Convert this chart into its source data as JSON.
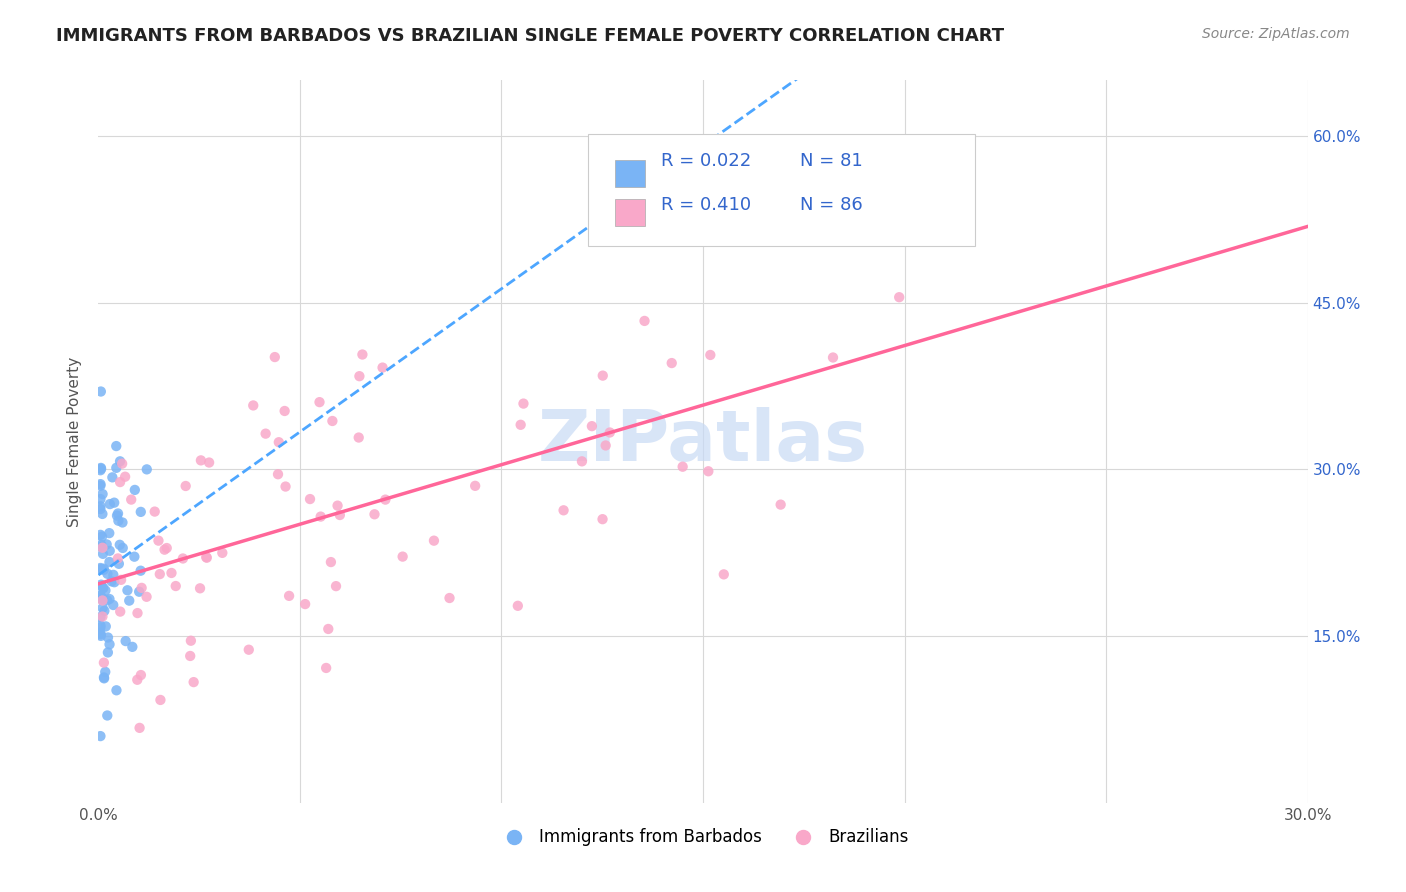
{
  "title": "IMMIGRANTS FROM BARBADOS VS BRAZILIAN SINGLE FEMALE POVERTY CORRELATION CHART",
  "source": "Source: ZipAtlas.com",
  "ylabel": "Single Female Poverty",
  "xlim": [
    0.0,
    0.3
  ],
  "ylim": [
    0.0,
    0.65
  ],
  "legend_r1": "R = 0.022",
  "legend_n1": "N = 81",
  "legend_r2": "R = 0.410",
  "legend_n2": "N = 86",
  "color_blue": "#7ab4f5",
  "color_pink": "#f9a8c9",
  "color_blue_line": "#4da6ff",
  "color_pink_line": "#ff6699",
  "color_text_blue": "#3366cc",
  "watermark_color": "#c8daf5",
  "background_color": "#ffffff",
  "grid_color": "#d8d8d8"
}
